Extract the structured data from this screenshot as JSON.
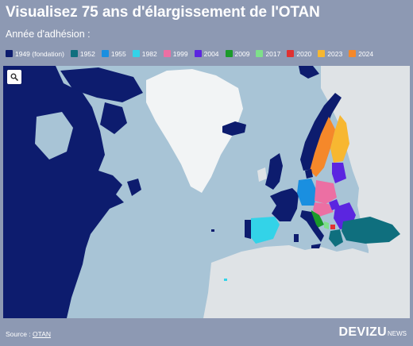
{
  "header": {
    "title": "Visualisez 75 ans d'élargissement de l'OTAN",
    "subtitle": "Année d'adhésion :"
  },
  "legend": [
    {
      "label": "1949 (fondation)",
      "color": "#0d1c6e"
    },
    {
      "label": "1952",
      "color": "#0f6f7e"
    },
    {
      "label": "1955",
      "color": "#1a8fe0"
    },
    {
      "label": "1982",
      "color": "#33d3e8"
    },
    {
      "label": "1999",
      "color": "#ec6fa3"
    },
    {
      "label": "2004",
      "color": "#5b25e0"
    },
    {
      "label": "2009",
      "color": "#1b9a2a"
    },
    {
      "label": "2017",
      "color": "#7ee08a"
    },
    {
      "label": "2020",
      "color": "#e03232"
    },
    {
      "label": "2023",
      "color": "#f7b731"
    },
    {
      "label": "2024",
      "color": "#f5882a"
    }
  ],
  "map": {
    "search_icon": "search-icon",
    "land_color": "#dfe3e6",
    "greenland_color": "#f2f4f5",
    "water_color": "#a8c4d6"
  },
  "footer": {
    "source_prefix": "Source : ",
    "source_link": "OTAN",
    "brand": "DEVIZU",
    "brand_sub": "NEWS"
  }
}
